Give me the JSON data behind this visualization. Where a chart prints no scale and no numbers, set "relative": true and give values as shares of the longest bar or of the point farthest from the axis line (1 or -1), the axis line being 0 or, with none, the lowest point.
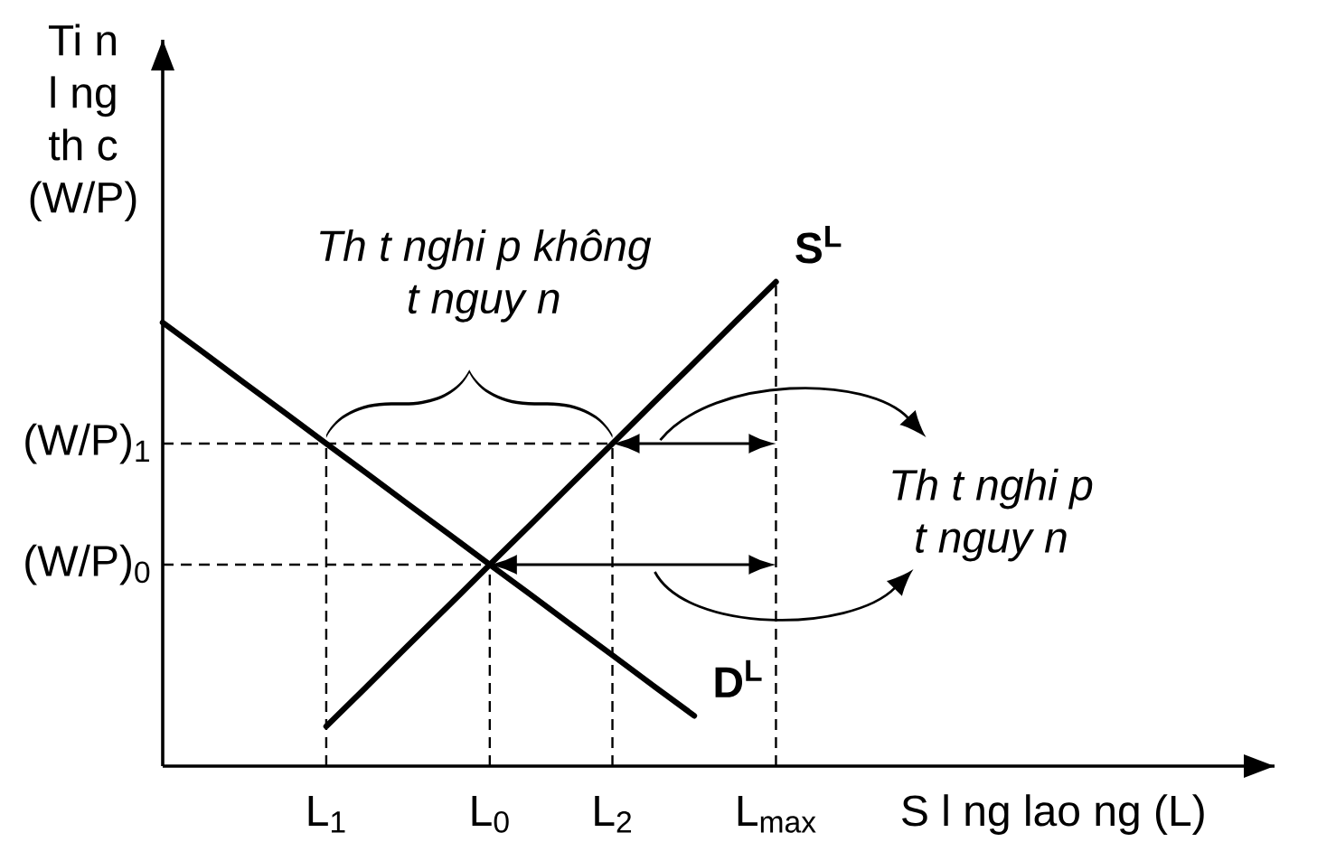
{
  "chart_data": {
    "type": "line",
    "relative": true,
    "xlabel": "S l ng lao ng (L)",
    "ylabel": "Ti n l ng th c (W/P)",
    "categories": [
      null,
      null,
      null,
      null,
      "L$_{1}$",
      null,
      null,
      null,
      "L$_{0}$",
      null,
      null,
      "L$_{2}$",
      null,
      null,
      null,
      "L$_{max}$"
    ],
    "series": [
      {
        "name": "D$^{L}$",
        "color": "#000000",
        "values": [
          0.916,
          0.854,
          0.791,
          0.729,
          0.666,
          0.604,
          0.541,
          0.479,
          0.416,
          0.354,
          0.291,
          0.229,
          0.166,
          0.104,
          null,
          null
        ]
      },
      {
        "name": "S$^{L}$",
        "color": "#000000",
        "values": [
          null,
          null,
          null,
          null,
          0.082,
          0.165,
          0.249,
          0.332,
          0.416,
          0.499,
          0.583,
          0.666,
          0.75,
          0.833,
          0.917,
          1
        ]
      }
    ],
    "ref_lines": [
      {
        "axis": "x",
        "value": "L$_{1}$",
        "line_style": "dashed"
      },
      {
        "axis": "x",
        "value": "L$_{0}$",
        "line_style": "dashed"
      },
      {
        "axis": "x",
        "value": "L$_{2}$",
        "line_style": "dashed"
      },
      {
        "axis": "x",
        "value": "L$_{max}$",
        "line_style": "dashed"
      },
      {
        "axis": "y",
        "value": 0.666,
        "label": "(W/P)$_{1}$",
        "line_style": "dashed"
      },
      {
        "axis": "y",
        "value": 0.416,
        "label": "(W/P)$_{0}$",
        "line_style": "dashed"
      }
    ],
    "annotations": [
      "Th t nghi p không t nguy n",
      "Th t nghi p t nguy n"
    ]
  }
}
